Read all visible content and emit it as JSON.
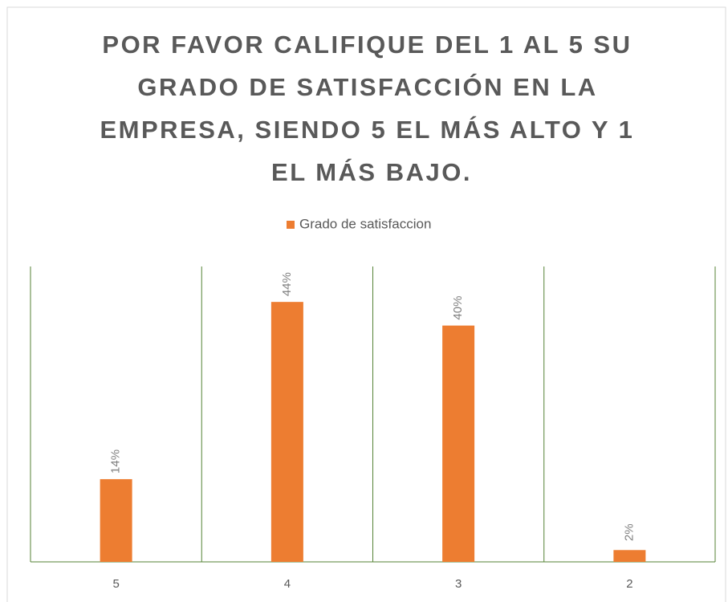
{
  "chart_data": {
    "type": "bar",
    "title": "POR FAVOR CALIFIQUE DEL 1 AL 5 SU GRADO DE SATISFACCIÓN EN LA EMPRESA, SIENDO 5 EL MÁS ALTO Y 1 EL MÁS BAJO.",
    "categories": [
      "5",
      "4",
      "3",
      "2"
    ],
    "series": [
      {
        "name": "Grado de satisfaccion",
        "color": "#ed7d31",
        "values": [
          14,
          44,
          40,
          2
        ],
        "value_labels": [
          "14%",
          "44%",
          "40%",
          "2%"
        ]
      }
    ],
    "ylim": [
      0,
      50
    ],
    "legend": "top",
    "grid_color": "#548235"
  }
}
